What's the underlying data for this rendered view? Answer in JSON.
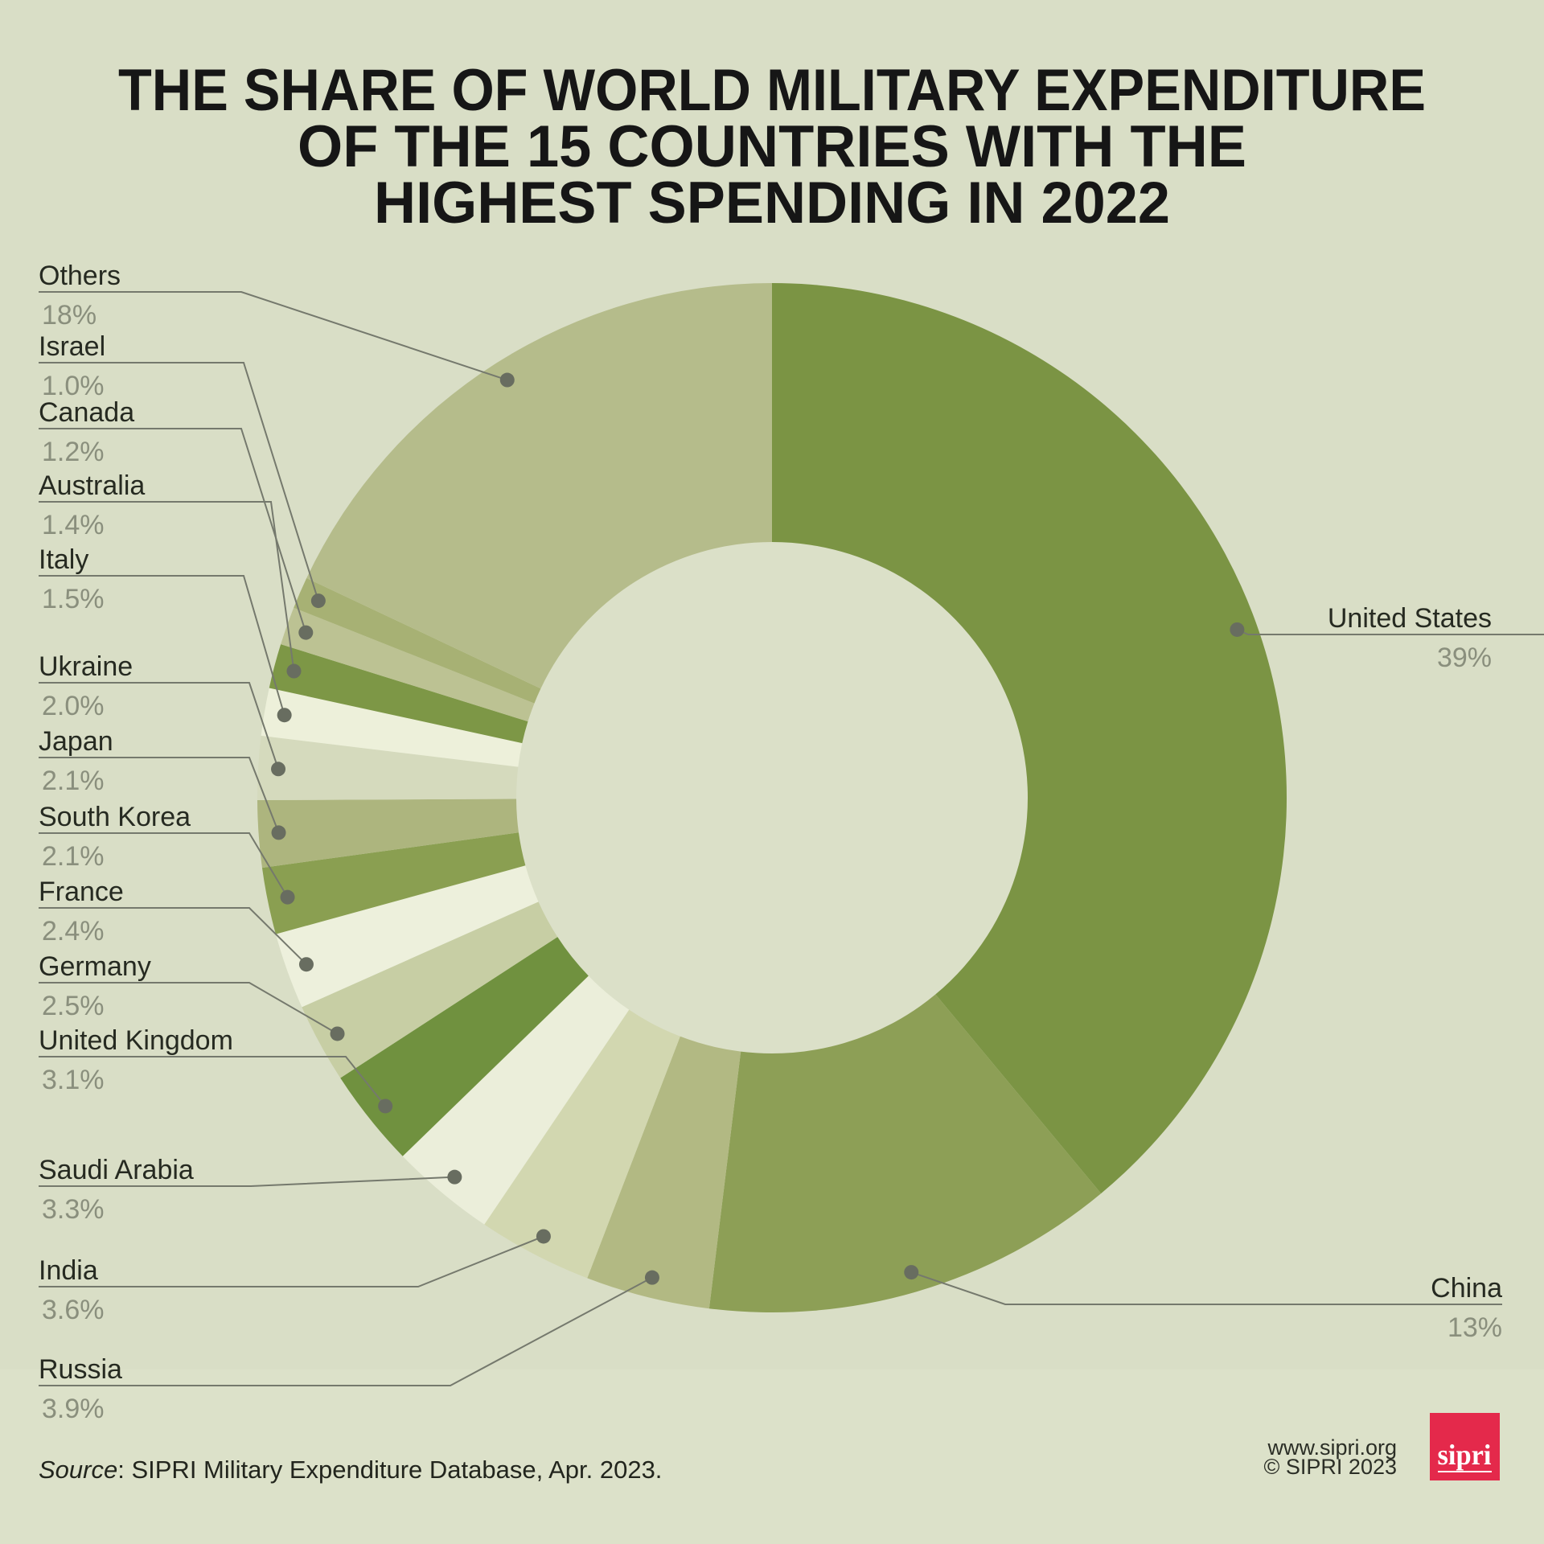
{
  "title": {
    "lines": [
      "THE SHARE OF WORLD MILITARY EXPENDITURE",
      "OF THE 15 COUNTRIES WITH THE",
      "HIGHEST SPENDING IN 2022"
    ]
  },
  "chart_data": {
    "type": "pie",
    "subtype": "donut",
    "title": "The share of world military expenditure of the 15 countries with the highest spending in 2022",
    "start_angle_deg": 0,
    "direction": "clockwise",
    "legend_position": "callout-labels",
    "segments": [
      {
        "label": "United States",
        "value_pct": 39,
        "display": "39%",
        "color": "#7b9444"
      },
      {
        "label": "China",
        "value_pct": 13,
        "display": "13%",
        "color": "#8d9f56"
      },
      {
        "label": "Russia",
        "value_pct": 3.9,
        "display": "3.9%",
        "color": "#b2b983"
      },
      {
        "label": "India",
        "value_pct": 3.6,
        "display": "3.6%",
        "color": "#d2d7b0"
      },
      {
        "label": "Saudi Arabia",
        "value_pct": 3.3,
        "display": "3.3%",
        "color": "#ebeeda"
      },
      {
        "label": "United Kingdom",
        "value_pct": 3.1,
        "display": "3.1%",
        "color": "#70913f"
      },
      {
        "label": "Germany",
        "value_pct": 2.5,
        "display": "2.5%",
        "color": "#c7cea4"
      },
      {
        "label": "France",
        "value_pct": 2.4,
        "display": "2.4%",
        "color": "#edf0dc"
      },
      {
        "label": "South Korea",
        "value_pct": 2.1,
        "display": "2.1%",
        "color": "#8a9f51"
      },
      {
        "label": "Japan",
        "value_pct": 2.1,
        "display": "2.1%",
        "color": "#adb57e"
      },
      {
        "label": "Ukraine",
        "value_pct": 2.0,
        "display": "2.0%",
        "color": "#d5dabd"
      },
      {
        "label": "Italy",
        "value_pct": 1.5,
        "display": "1.5%",
        "color": "#edf0da"
      },
      {
        "label": "Australia",
        "value_pct": 1.4,
        "display": "1.4%",
        "color": "#7d9746"
      },
      {
        "label": "Canada",
        "value_pct": 1.2,
        "display": "1.2%",
        "color": "#bcc293"
      },
      {
        "label": "Israel",
        "value_pct": 1.0,
        "display": "1.0%",
        "color": "#a7b174"
      },
      {
        "label": "Others",
        "value_pct": 18,
        "display": "18%",
        "color": "#b5bc8b"
      }
    ]
  },
  "source_note": {
    "prefix_italic": "Source",
    "rest": ": SIPRI Military Expenditure Database, Apr. 2023."
  },
  "footer_right": {
    "website": "www.sipri.org",
    "copyright": "© SIPRI 2023",
    "logo_text": "sipri",
    "logo_color": "#e4294b"
  },
  "colors": {
    "background": "#d9dec6",
    "footer_background": "#dce1c9",
    "donut_hole": "#dbe0c8",
    "title_text": "#161616",
    "country_text": "#262a21",
    "percent_text": "#8a8f7d",
    "leader_line": "#75796d",
    "leader_dot": "#686d60"
  }
}
